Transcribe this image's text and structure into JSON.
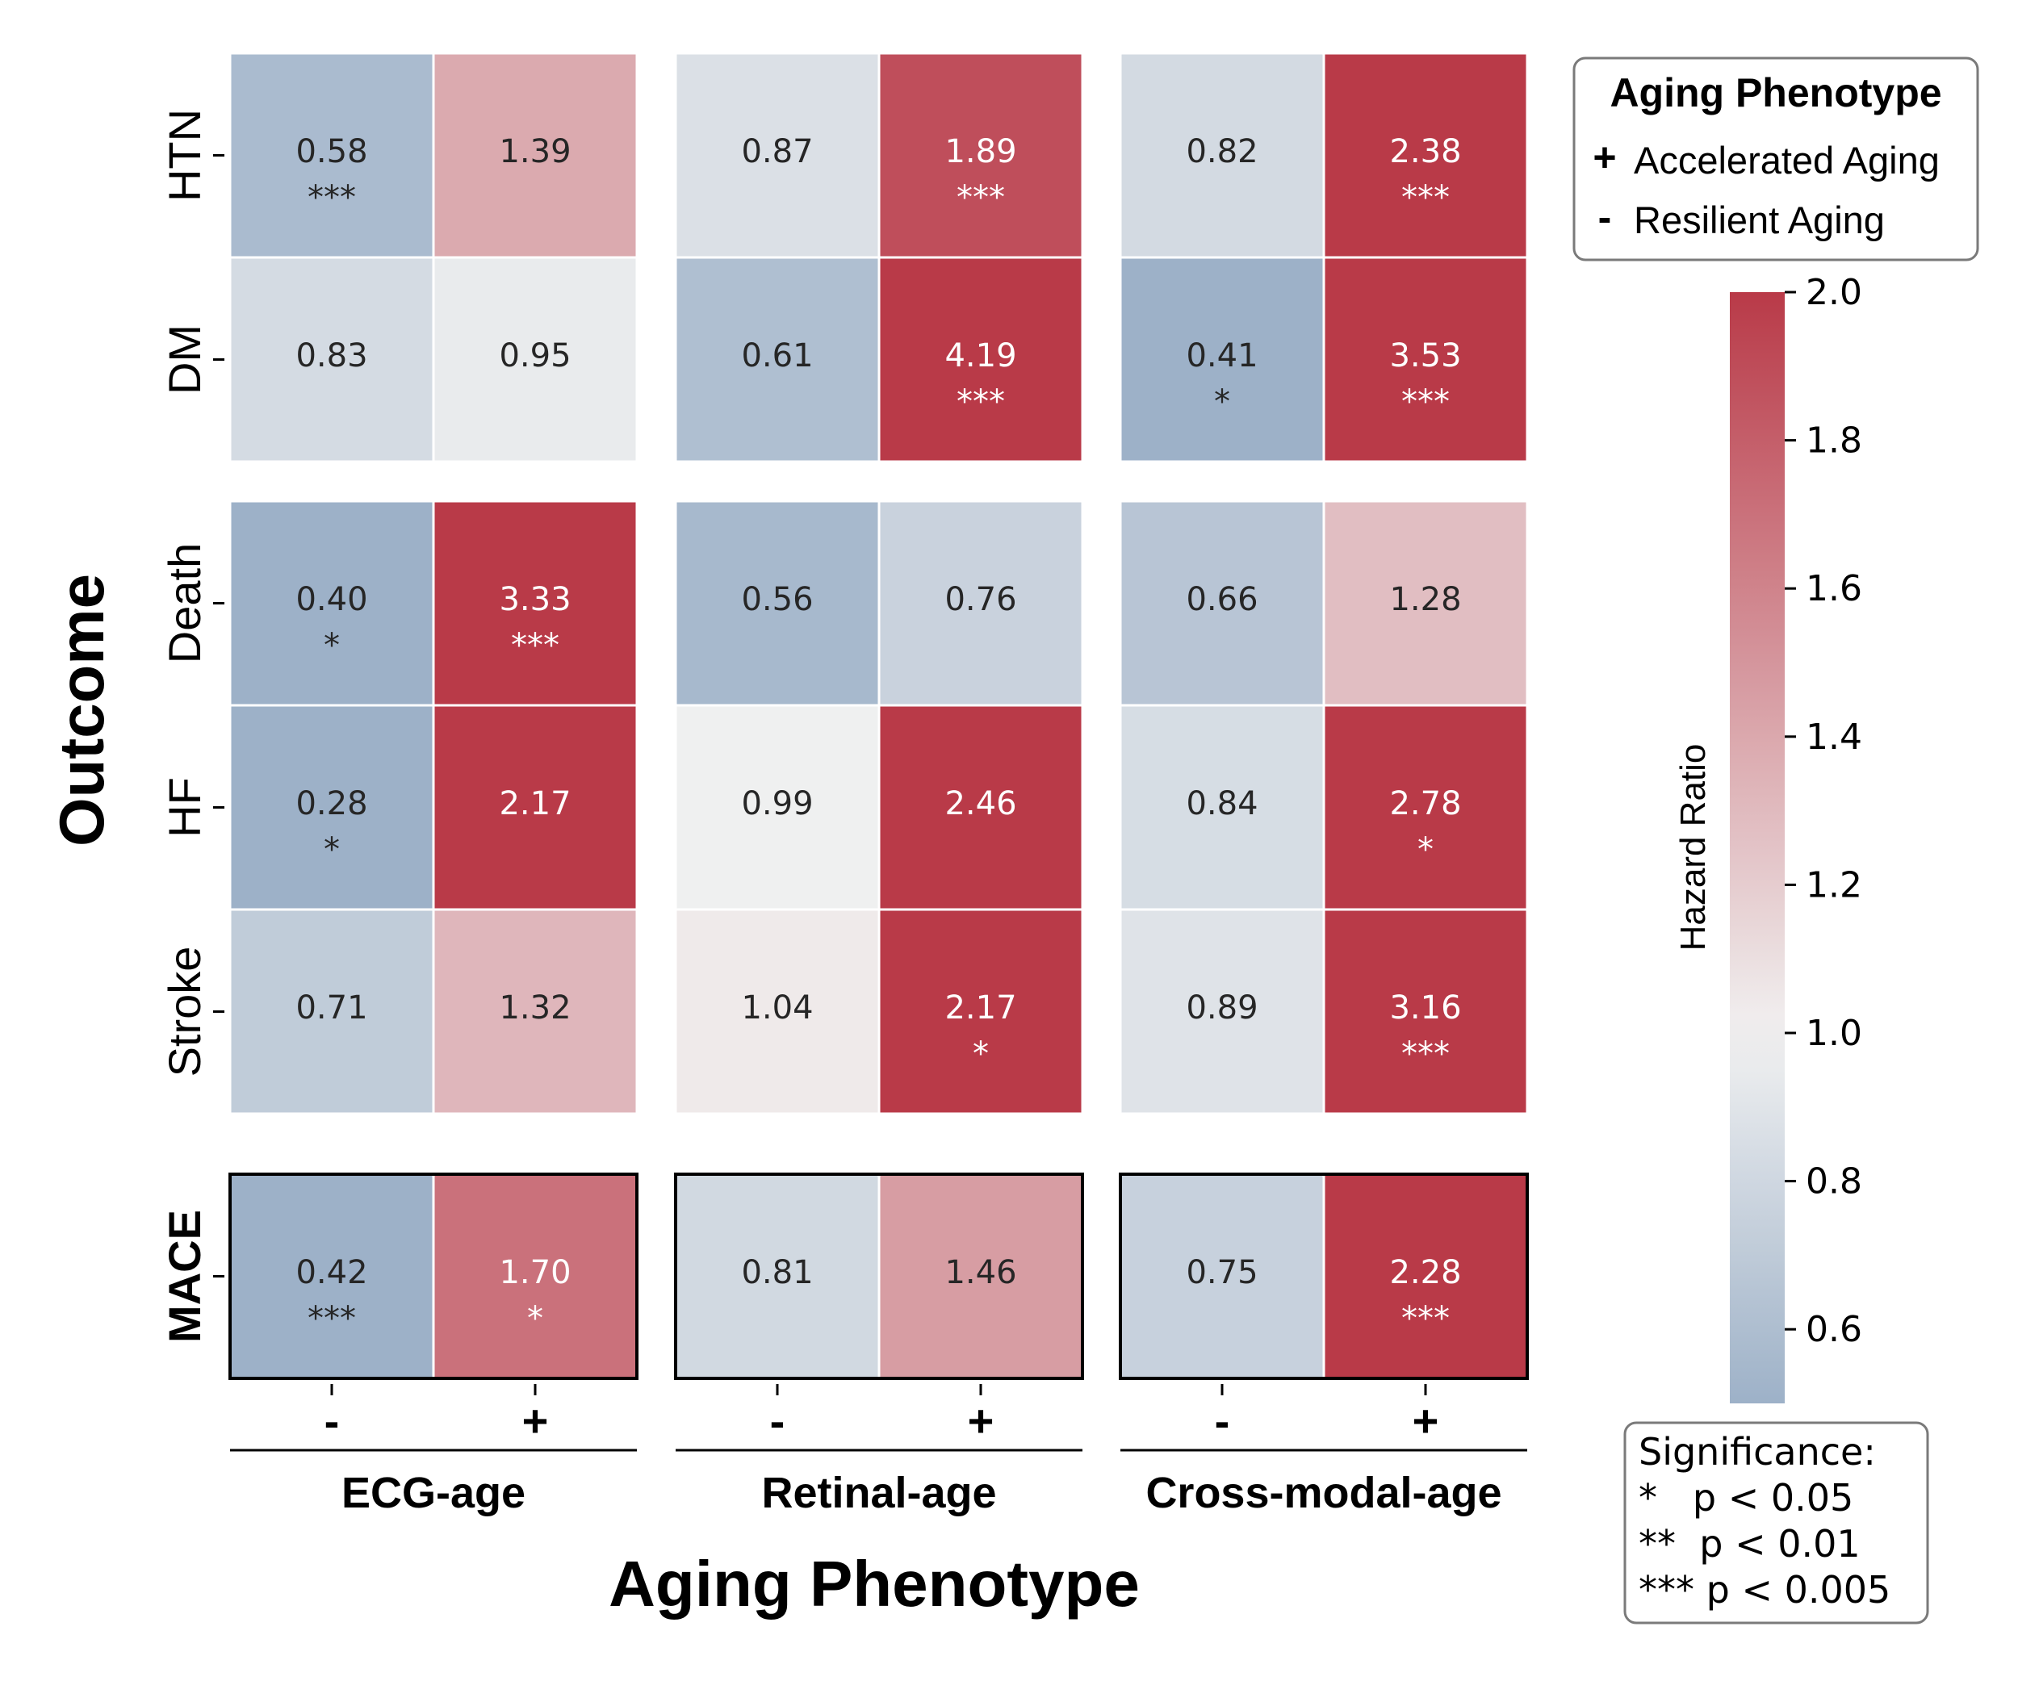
{
  "chart_data": {
    "type": "heatmap",
    "title": "",
    "xlabel": "Aging Phenotype",
    "ylabel": "Outcome",
    "colorbar": {
      "label": "Hazard Ratio",
      "range": [
        0.5,
        2.0
      ],
      "ticks": [
        "0.6",
        "0.8",
        "1.0",
        "1.2",
        "1.4",
        "1.6",
        "1.8",
        "2.0"
      ],
      "low_color": "#9db1c8",
      "mid_color": "#f1f1f1",
      "high_color": "#b93a48"
    },
    "groups": [
      {
        "label": "ECG-age"
      },
      {
        "label": "Retinal-age"
      },
      {
        "label": "Cross-modal-age"
      }
    ],
    "phenotypes": [
      "-",
      "+"
    ],
    "outcome_blocks": [
      {
        "outcomes": [
          "HTN",
          "DM"
        ],
        "boxed": false
      },
      {
        "outcomes": [
          "Death",
          "HF",
          "Stroke"
        ],
        "boxed": false
      },
      {
        "outcomes": [
          "MACE"
        ],
        "boxed": true
      }
    ],
    "cells": {
      "HTN": [
        [
          0.58,
          "***",
          1.39,
          ""
        ],
        [
          0.87,
          "",
          1.89,
          "***"
        ],
        [
          0.82,
          "",
          2.38,
          "***"
        ]
      ],
      "DM": [
        [
          0.83,
          "",
          0.95,
          ""
        ],
        [
          0.61,
          "",
          4.19,
          "***"
        ],
        [
          0.41,
          "*",
          3.53,
          "***"
        ]
      ],
      "Death": [
        [
          0.4,
          "*",
          3.33,
          "***"
        ],
        [
          0.56,
          "",
          0.76,
          ""
        ],
        [
          0.66,
          "",
          1.28,
          ""
        ]
      ],
      "HF": [
        [
          0.28,
          "*",
          2.17,
          ""
        ],
        [
          0.99,
          "",
          2.46,
          ""
        ],
        [
          0.84,
          "",
          2.78,
          "*"
        ]
      ],
      "Stroke": [
        [
          0.71,
          "",
          1.32,
          ""
        ],
        [
          1.04,
          "",
          2.17,
          "*"
        ],
        [
          0.89,
          "",
          3.16,
          "***"
        ]
      ],
      "MACE": [
        [
          0.42,
          "***",
          1.7,
          "*"
        ],
        [
          0.81,
          "",
          1.46,
          ""
        ],
        [
          0.75,
          "",
          2.28,
          "***"
        ]
      ]
    }
  },
  "legend": {
    "title": "Aging Phenotype",
    "items": [
      {
        "symbol": "+",
        "label": "Accelerated Aging"
      },
      {
        "symbol": "-",
        "label": "Resilient Aging"
      }
    ]
  },
  "significance": {
    "title": "Significance:",
    "lines": [
      "*   p < 0.05",
      "**  p < 0.01",
      "*** p < 0.005"
    ]
  }
}
